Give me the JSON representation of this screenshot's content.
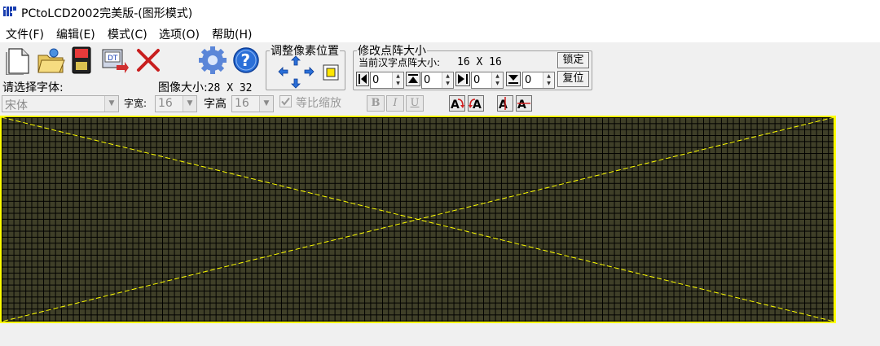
{
  "titlebar": {
    "title": "PCtoLCD2002完美版-(图形模式)"
  },
  "menu": [
    {
      "label": "文件(F)"
    },
    {
      "label": "编辑(E)"
    },
    {
      "label": "模式(C)"
    },
    {
      "label": "选项(O)"
    },
    {
      "label": "帮助(H)"
    }
  ],
  "toolbar": {
    "icons": [
      "new-file-icon",
      "open-folder-icon",
      "save-disk-icon",
      "generate-export-icon",
      "delete-icon",
      "settings-gear-icon",
      "help-icon"
    ]
  },
  "font": {
    "prompt_label": "请选择字体:",
    "font_name": "宋体",
    "width_label": "字宽:",
    "width_value": "16",
    "height_label": "字高",
    "height_value": "16",
    "proportional_label": "等比缩放",
    "bold_label": "B",
    "italic_label": "I",
    "underline_label": "U"
  },
  "image_size": {
    "label": "图像大小:",
    "value": "28 X 32"
  },
  "adjust_pixel": {
    "legend": "调整像素位置"
  },
  "dot_matrix": {
    "legend": "修改点阵大小",
    "current_label": "当前汉字点阵大小:",
    "current_value": "16 X 16",
    "lock_label": "锁定",
    "reset_label": "复位",
    "left_value": "0",
    "top_value": "0",
    "right_value": "0",
    "bottom_value": "0"
  },
  "colors": {
    "canvas_border": "#ffff00",
    "grid_cell": "#3f3f28",
    "grid_line": "#000000",
    "diagonal": "#ffff00"
  }
}
